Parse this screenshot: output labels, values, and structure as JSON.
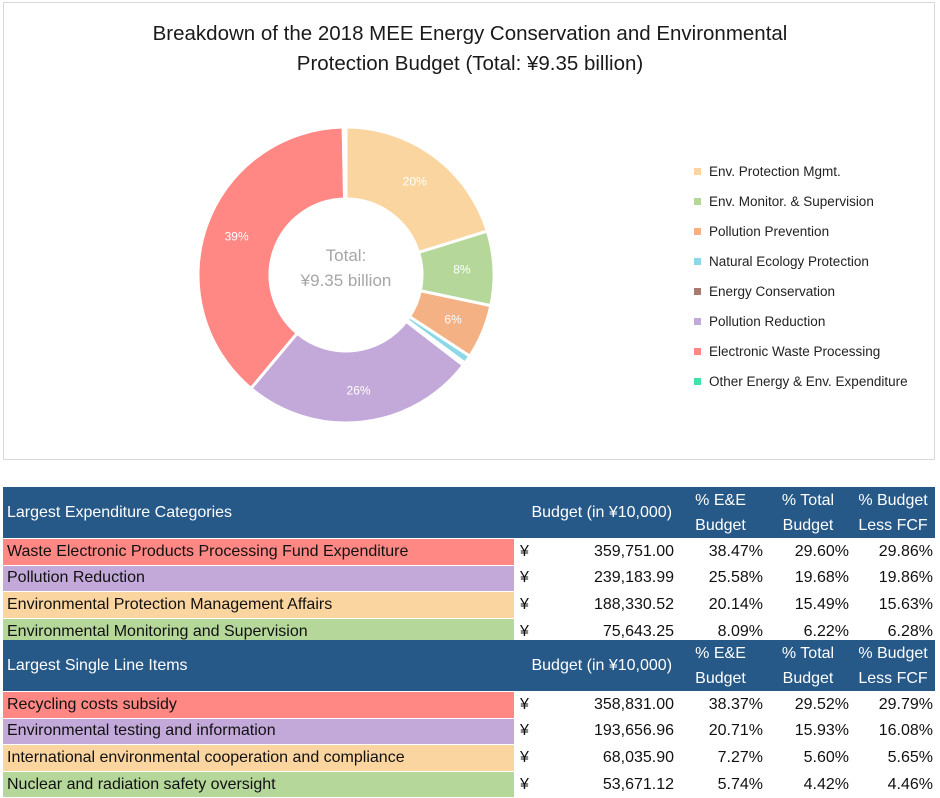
{
  "chart_data": {
    "type": "pie",
    "title_lines": [
      "Breakdown of the 2018 MEE Energy Conservation and Environmental",
      "Protection Budget (Total: ¥9.35 billion)"
    ],
    "center_label_lines": [
      "Total:",
      "¥9.35 billion"
    ],
    "legend_position": "right",
    "slices": [
      {
        "name": "Env. Protection Mgmt.",
        "value": 20.14,
        "label": "20%",
        "color": "#FBD5A0"
      },
      {
        "name": "Env. Monitor. & Supervision",
        "value": 8.09,
        "label": "8%",
        "color": "#B5D89A"
      },
      {
        "name": "Pollution Prevention",
        "value": 5.9,
        "label": "6%",
        "color": "#F4B183"
      },
      {
        "name": "Natural Ecology Protection",
        "value": 0.9,
        "label": "",
        "color": "#8BD8E6"
      },
      {
        "name": "Energy Conservation",
        "value": 0.3,
        "label": "",
        "color": "#A57D6E"
      },
      {
        "name": "Pollution Reduction",
        "value": 25.58,
        "label": "26%",
        "color": "#C3A9DA"
      },
      {
        "name": "Electronic Waste Processing",
        "value": 38.47,
        "label": "39%",
        "color": "#FF8784"
      },
      {
        "name": "Other Energy & Env. Expenditure",
        "value": 0.3,
        "label": "",
        "color": "#3EE3A8"
      }
    ]
  },
  "categories_table": {
    "header": {
      "label": "Largest Expenditure Categories",
      "budget": "Budget (in ¥10,000)",
      "pct_ee": [
        "% E&E",
        "Budget"
      ],
      "pct_total": [
        "% Total",
        "Budget"
      ],
      "pct_fcf": [
        "% Budget",
        "Less FCF"
      ]
    },
    "rows": [
      {
        "name": "Waste Electronic Products Processing Fund Expenditure",
        "currency": "¥",
        "amount": "359,751.00",
        "pct_ee": "38.47%",
        "pct_total": "29.60%",
        "pct_fcf": "29.86%",
        "color": "#FF8784"
      },
      {
        "name": "Pollution Reduction",
        "currency": "¥",
        "amount": "239,183.99",
        "pct_ee": "25.58%",
        "pct_total": "19.68%",
        "pct_fcf": "19.86%",
        "color": "#C3A9DA"
      },
      {
        "name": "Environmental Protection Management Affairs",
        "currency": "¥",
        "amount": "188,330.52",
        "pct_ee": "20.14%",
        "pct_total": "15.49%",
        "pct_fcf": "15.63%",
        "color": "#FBD5A0"
      },
      {
        "name": "Environmental Monitoring and Supervision",
        "currency": "¥",
        "amount": "75,643.25",
        "pct_ee": "8.09%",
        "pct_total": "6.22%",
        "pct_fcf": "6.28%",
        "color": "#B5D89A"
      }
    ]
  },
  "line_items_table": {
    "header": {
      "label": "Largest Single Line Items",
      "budget": "Budget (in ¥10,000)",
      "pct_ee": [
        "% E&E",
        "Budget"
      ],
      "pct_total": [
        "% Total",
        "Budget"
      ],
      "pct_fcf": [
        "% Budget",
        "Less FCF"
      ]
    },
    "rows": [
      {
        "name": "Recycling costs subsidy",
        "currency": "¥",
        "amount": "358,831.00",
        "pct_ee": "38.37%",
        "pct_total": "29.52%",
        "pct_fcf": "29.79%",
        "color": "#FF8784"
      },
      {
        "name": "Environmental testing and information",
        "currency": "¥",
        "amount": "193,656.96",
        "pct_ee": "20.71%",
        "pct_total": "15.93%",
        "pct_fcf": "16.08%",
        "color": "#C3A9DA"
      },
      {
        "name": "International environmental cooperation and compliance",
        "currency": "¥",
        "amount": "68,035.90",
        "pct_ee": "7.27%",
        "pct_total": "5.60%",
        "pct_fcf": "5.65%",
        "color": "#FBD5A0"
      },
      {
        "name": "Nuclear and radiation safety oversight",
        "currency": "¥",
        "amount": "53,671.12",
        "pct_ee": "5.74%",
        "pct_total": "4.42%",
        "pct_fcf": "4.46%",
        "color": "#B5D89A"
      }
    ]
  }
}
